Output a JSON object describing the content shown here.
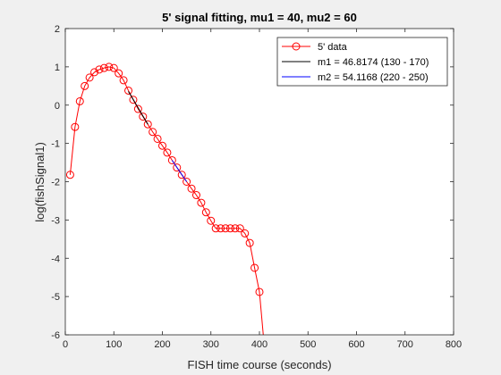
{
  "chart_data": {
    "type": "line",
    "title": "5' signal fitting, mu1 = 40, mu2 = 60",
    "xlabel": "FISH time course (seconds)",
    "ylabel": "log(fishSignal1)",
    "xlim": [
      0,
      800
    ],
    "ylim": [
      -6,
      2
    ],
    "xticks": [
      0,
      100,
      200,
      300,
      400,
      500,
      600,
      700,
      800
    ],
    "yticks": [
      -6,
      -5,
      -4,
      -3,
      -2,
      -1,
      0,
      1,
      2
    ],
    "grid": false,
    "legend_position": "top-right",
    "series": [
      {
        "name": "5' data",
        "color": "#ff0000",
        "marker": "circle",
        "x": [
          10,
          20,
          30,
          40,
          50,
          60,
          70,
          80,
          90,
          100,
          110,
          120,
          130,
          140,
          150,
          160,
          170,
          180,
          190,
          200,
          210,
          220,
          230,
          240,
          250,
          260,
          270,
          280,
          290,
          300,
          310,
          320,
          330,
          340,
          350,
          360,
          370,
          380,
          390,
          400,
          410
        ],
        "y": [
          -1.82,
          -0.57,
          0.1,
          0.5,
          0.72,
          0.86,
          0.93,
          0.97,
          1.0,
          0.97,
          0.83,
          0.65,
          0.38,
          0.14,
          -0.1,
          -0.3,
          -0.5,
          -0.7,
          -0.88,
          -1.06,
          -1.24,
          -1.44,
          -1.63,
          -1.82,
          -2.0,
          -2.18,
          -2.35,
          -2.55,
          -2.8,
          -3.02,
          -3.22,
          -3.22,
          -3.22,
          -3.22,
          -3.22,
          -3.22,
          -3.35,
          -3.6,
          -4.25,
          -4.88,
          -6.3
        ]
      },
      {
        "name": "m1 = 46.8174 (130 - 170)",
        "color": "#000000",
        "marker": "none",
        "x": [
          130,
          170
        ],
        "y": [
          0.36,
          -0.5
        ]
      },
      {
        "name": "m2 = 54.1168 (220 - 250)",
        "color": "#0000ff",
        "marker": "none",
        "x": [
          220,
          250
        ],
        "y": [
          -1.44,
          -2.0
        ]
      }
    ]
  },
  "colors": {
    "figure_bg": "#f0f0f0",
    "axes_bg": "#ffffff",
    "axis_color": "#262626"
  }
}
